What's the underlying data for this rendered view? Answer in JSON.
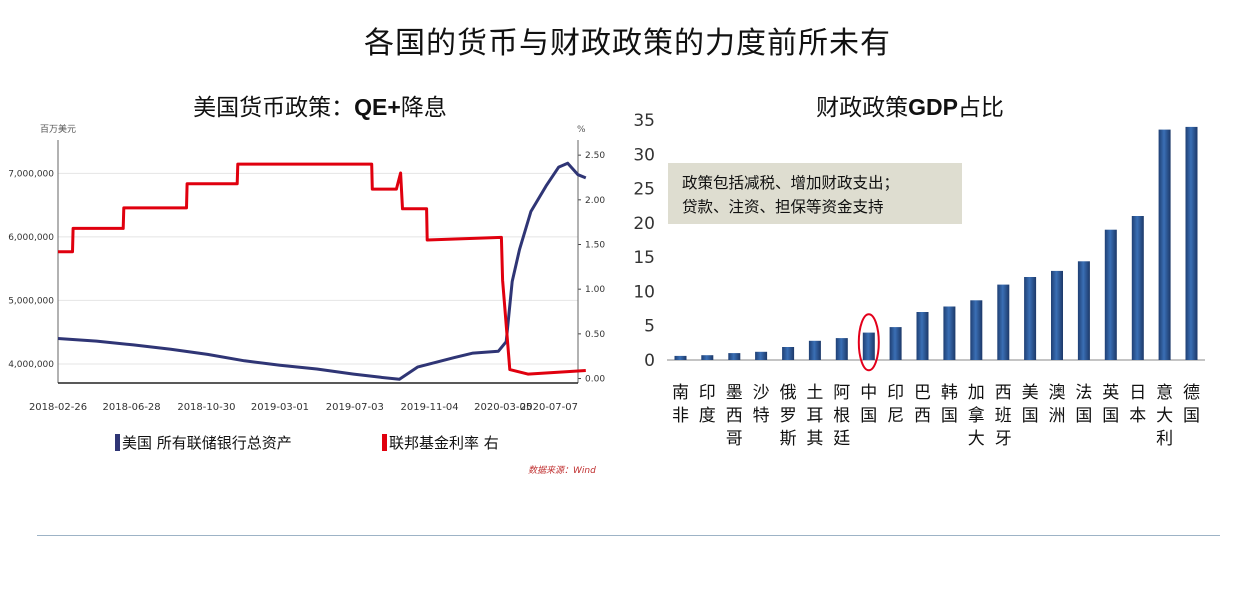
{
  "page_title": "各国的货币与财政政策的力度前所未有",
  "left_panel": {
    "subtitle_prefix": "美国货币政策：",
    "subtitle_bold": "QE+",
    "subtitle_suffix": "降息",
    "legend": [
      {
        "label": "美国 所有联储银行总资产",
        "color": "#2f3575"
      },
      {
        "label": "联邦基金利率 右",
        "color": "#e0000e"
      }
    ],
    "source": "数据来源：Wind"
  },
  "right_panel": {
    "subtitle_prefix": "财政政策",
    "subtitle_bold": "GDP",
    "subtitle_suffix": "占比",
    "callout_lines": [
      "政策包括减税、增加财政支出；",
      "贷款、注资、担保等资金支持"
    ]
  },
  "chart_data": [
    {
      "type": "line",
      "ylabel": "百万美元",
      "y2label": "%",
      "ylim": [
        3700000,
        7400000
      ],
      "y2lim": [
        -0.05,
        2.58
      ],
      "yticks": [
        4000000,
        5000000,
        6000000,
        7000000
      ],
      "ytick_labels": [
        "4,000,000",
        "5,000,000",
        "6,000,000",
        "7,000,000"
      ],
      "y2ticks": [
        0,
        0.5,
        1,
        1.5,
        2,
        2.5
      ],
      "y2tick_labels": [
        "0.00",
        "0.50",
        "1.00",
        "1.50",
        "2.00",
        "2.50"
      ],
      "xticks": [
        "2018-02-26",
        "2018-06-28",
        "2018-10-30",
        "2019-03-01",
        "2019-07-03",
        "2019-11-04",
        "2020-03-05",
        "2020-07-07"
      ],
      "grid": "horizontal",
      "series": [
        {
          "name": "美国 所有联储银行总资产",
          "axis": "left",
          "color": "#2f3575",
          "points": [
            [
              "2018-02-26",
              4400000
            ],
            [
              "2018-05-01",
              4360000
            ],
            [
              "2018-07-01",
              4300000
            ],
            [
              "2018-09-01",
              4230000
            ],
            [
              "2018-11-01",
              4150000
            ],
            [
              "2019-01-01",
              4050000
            ],
            [
              "2019-03-01",
              3980000
            ],
            [
              "2019-05-01",
              3920000
            ],
            [
              "2019-07-01",
              3840000
            ],
            [
              "2019-08-15",
              3790000
            ],
            [
              "2019-09-15",
              3760000
            ],
            [
              "2019-10-15",
              3950000
            ],
            [
              "2019-12-15",
              4100000
            ],
            [
              "2020-01-15",
              4170000
            ],
            [
              "2020-02-26",
              4200000
            ],
            [
              "2020-03-10",
              4350000
            ],
            [
              "2020-03-20",
              5300000
            ],
            [
              "2020-04-01",
              5800000
            ],
            [
              "2020-04-20",
              6400000
            ],
            [
              "2020-05-15",
              6800000
            ],
            [
              "2020-06-05",
              7100000
            ],
            [
              "2020-06-20",
              7160000
            ],
            [
              "2020-07-07",
              6980000
            ],
            [
              "2020-07-20",
              6930000
            ]
          ]
        },
        {
          "name": "联邦基金利率 右",
          "axis": "right",
          "color": "#e0000e",
          "points": [
            [
              "2018-02-26",
              1.42
            ],
            [
              "2018-03-22",
              1.42
            ],
            [
              "2018-03-23",
              1.68
            ],
            [
              "2018-06-14",
              1.68
            ],
            [
              "2018-06-15",
              1.91
            ],
            [
              "2018-09-27",
              1.91
            ],
            [
              "2018-09-28",
              2.18
            ],
            [
              "2018-12-20",
              2.18
            ],
            [
              "2018-12-21",
              2.4
            ],
            [
              "2019-07-31",
              2.4
            ],
            [
              "2019-08-01",
              2.12
            ],
            [
              "2019-09-10",
              2.12
            ],
            [
              "2019-09-17",
              2.3
            ],
            [
              "2019-09-20",
              1.9
            ],
            [
              "2019-10-30",
              1.9
            ],
            [
              "2019-10-31",
              1.55
            ],
            [
              "2020-03-02",
              1.58
            ],
            [
              "2020-03-04",
              1.1
            ],
            [
              "2020-03-16",
              0.1
            ],
            [
              "2020-04-15",
              0.05
            ],
            [
              "2020-07-20",
              0.09
            ]
          ]
        }
      ]
    },
    {
      "type": "bar",
      "ylim": [
        0,
        35
      ],
      "yticks": [
        0,
        5,
        10,
        15,
        20,
        25,
        30,
        35
      ],
      "grid": "none",
      "categories": [
        "南非",
        "印度",
        "墨西哥",
        "沙特",
        "俄罗斯",
        "土耳其",
        "阿根廷",
        "中国",
        "印尼",
        "巴西",
        "韩国",
        "加拿大",
        "西班牙",
        "美国",
        "澳洲",
        "法国",
        "英国",
        "日本",
        "意大利",
        "德国"
      ],
      "values": [
        0.6,
        0.7,
        1.0,
        1.2,
        1.9,
        2.8,
        3.2,
        4.0,
        4.8,
        7.0,
        7.8,
        8.7,
        11.0,
        12.1,
        13.0,
        14.4,
        19.0,
        21.0,
        33.6,
        34.0
      ],
      "highlight_category": "中国",
      "bar_color": "#3a6fb5"
    }
  ]
}
